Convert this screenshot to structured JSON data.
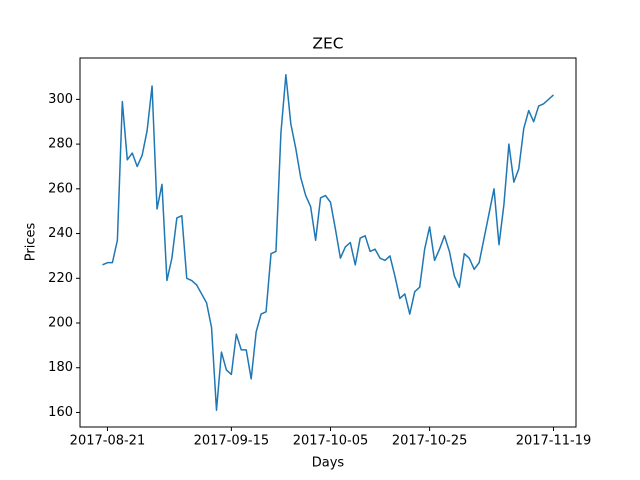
{
  "chart_data": {
    "type": "line",
    "title": "ZEC",
    "xlabel": "Days",
    "ylabel": "Prices",
    "x": [
      "2017-08-20",
      "2017-08-21",
      "2017-08-22",
      "2017-08-23",
      "2017-08-24",
      "2017-08-25",
      "2017-08-26",
      "2017-08-27",
      "2017-08-28",
      "2017-08-29",
      "2017-08-30",
      "2017-08-31",
      "2017-09-01",
      "2017-09-02",
      "2017-09-03",
      "2017-09-04",
      "2017-09-05",
      "2017-09-06",
      "2017-09-07",
      "2017-09-08",
      "2017-09-09",
      "2017-09-10",
      "2017-09-11",
      "2017-09-12",
      "2017-09-13",
      "2017-09-14",
      "2017-09-15",
      "2017-09-16",
      "2017-09-17",
      "2017-09-18",
      "2017-09-19",
      "2017-09-20",
      "2017-09-21",
      "2017-09-22",
      "2017-09-23",
      "2017-09-24",
      "2017-09-25",
      "2017-09-26",
      "2017-09-27",
      "2017-09-28",
      "2017-09-29",
      "2017-09-30",
      "2017-10-01",
      "2017-10-02",
      "2017-10-03",
      "2017-10-04",
      "2017-10-05",
      "2017-10-06",
      "2017-10-07",
      "2017-10-08",
      "2017-10-09",
      "2017-10-10",
      "2017-10-11",
      "2017-10-12",
      "2017-10-13",
      "2017-10-14",
      "2017-10-15",
      "2017-10-16",
      "2017-10-17",
      "2017-10-18",
      "2017-10-19",
      "2017-10-20",
      "2017-10-21",
      "2017-10-22",
      "2017-10-23",
      "2017-10-24",
      "2017-10-25",
      "2017-10-26",
      "2017-10-27",
      "2017-10-28",
      "2017-10-29",
      "2017-10-30",
      "2017-10-31",
      "2017-11-01",
      "2017-11-02",
      "2017-11-03",
      "2017-11-04",
      "2017-11-05",
      "2017-11-06",
      "2017-11-07",
      "2017-11-08",
      "2017-11-09",
      "2017-11-10",
      "2017-11-11",
      "2017-11-12",
      "2017-11-13",
      "2017-11-14",
      "2017-11-15",
      "2017-11-16",
      "2017-11-17",
      "2017-11-18",
      "2017-11-19"
    ],
    "series": [
      {
        "color": "#1f77b4",
        "values": [
          226,
          227,
          227,
          237,
          299,
          273,
          276,
          270,
          275,
          286,
          306,
          251,
          262,
          219,
          229,
          247,
          248,
          220,
          219,
          217,
          213,
          209,
          198,
          161,
          187,
          179,
          177,
          195,
          188,
          188,
          175,
          196,
          204,
          205,
          231,
          232,
          285,
          311,
          289,
          278,
          265,
          257,
          252,
          237,
          256,
          257,
          254,
          242,
          229,
          234,
          236,
          226,
          238,
          239,
          232,
          233,
          229,
          228,
          230,
          221,
          211,
          213,
          204,
          214,
          216,
          233,
          243,
          228,
          233,
          239,
          232,
          221,
          216,
          231,
          229,
          224,
          227,
          238,
          249,
          260,
          235,
          253,
          280,
          263,
          269,
          287,
          295,
          290,
          297,
          298,
          300,
          302
        ]
      }
    ],
    "xlim": [
      "2017-08-15T11:00:00Z",
      "2017-11-23T13:00:00Z"
    ],
    "xticks": [
      "2017-08-21",
      "2017-09-15",
      "2017-10-05",
      "2017-10-25",
      "2017-11-19"
    ],
    "ylim": [
      153.5,
      318.5
    ],
    "yticks": [
      160,
      180,
      200,
      220,
      240,
      260,
      280,
      300
    ]
  }
}
